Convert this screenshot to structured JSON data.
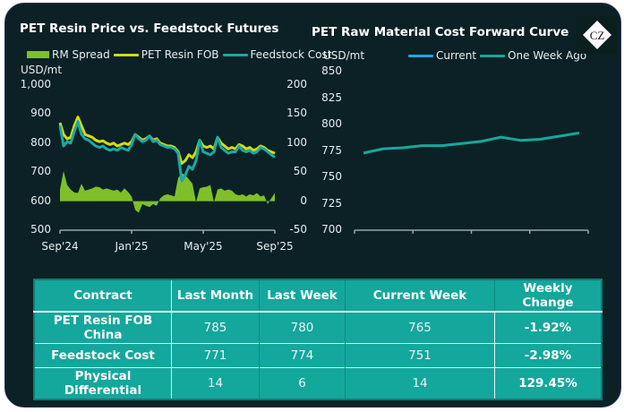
{
  "colors": {
    "background": "#0c2126",
    "rm_spread": "#7fbf2a",
    "pet_resin_fob": "#d4dc10",
    "feedstock_cost": "#18aaa5",
    "current": "#1aa8e0",
    "one_week_ago": "#14a99c",
    "table_bg": "#14a79c",
    "axis": "#9aa6a8"
  },
  "logo": {
    "icon": "cz-diamond-logo",
    "text": "CZ"
  },
  "chart_data": [
    {
      "type": "line",
      "title": "PET Resin Price vs. Feedstock Futures",
      "ylabel": "USD/mt",
      "legend_position": "top",
      "left_axis": {
        "ylim": [
          500,
          1000
        ],
        "ticks": [
          "1,000",
          "900",
          "800",
          "700",
          "600",
          "500"
        ]
      },
      "right_axis": {
        "ylim": [
          -50,
          200
        ],
        "ticks": [
          "200",
          "150",
          "100",
          "50",
          "0",
          "-50"
        ]
      },
      "x_tick_labels": [
        "Sep'24",
        "Jan'25",
        "May'25",
        "Sep'25"
      ],
      "x_range_months": [
        0,
        12
      ],
      "legend": [
        "RM Spread",
        "PET Resin FOB",
        "Feedstock Cost"
      ],
      "series": [
        {
          "name": "PET Resin FOB",
          "axis": "left",
          "x": [
            0,
            0.2,
            0.4,
            0.6,
            0.8,
            1.0,
            1.2,
            1.4,
            1.6,
            1.8,
            2.0,
            2.2,
            2.4,
            2.6,
            2.8,
            3.0,
            3.2,
            3.4,
            3.6,
            3.8,
            4.0,
            4.2,
            4.4,
            4.6,
            4.8,
            5.0,
            5.2,
            5.4,
            5.6,
            5.8,
            6.0,
            6.2,
            6.4,
            6.6,
            6.8,
            7.0,
            7.2,
            7.4,
            7.6,
            7.8,
            8.0,
            8.2,
            8.4,
            8.6,
            8.8,
            9.0,
            9.2,
            9.4,
            9.6,
            9.8,
            10.0,
            10.2,
            10.4,
            10.6,
            10.8,
            11.0,
            11.2,
            11.4,
            11.6,
            11.8,
            12.0
          ],
          "values": [
            870,
            830,
            815,
            820,
            860,
            890,
            860,
            830,
            825,
            820,
            810,
            805,
            808,
            800,
            795,
            800,
            790,
            795,
            800,
            795,
            805,
            830,
            820,
            810,
            815,
            825,
            810,
            815,
            800,
            795,
            790,
            790,
            785,
            770,
            730,
            740,
            760,
            750,
            770,
            810,
            790,
            785,
            790,
            780,
            820,
            800,
            790,
            780,
            785,
            780,
            795,
            790,
            780,
            785,
            775,
            780,
            790,
            785,
            775,
            770,
            765
          ]
        },
        {
          "name": "Feedstock Cost",
          "axis": "left",
          "x": [
            0,
            0.2,
            0.4,
            0.6,
            0.8,
            1.0,
            1.2,
            1.4,
            1.6,
            1.8,
            2.0,
            2.2,
            2.4,
            2.6,
            2.8,
            3.0,
            3.2,
            3.4,
            3.6,
            3.8,
            4.0,
            4.2,
            4.4,
            4.6,
            4.8,
            5.0,
            5.2,
            5.4,
            5.6,
            5.8,
            6.0,
            6.2,
            6.4,
            6.6,
            6.8,
            7.0,
            7.2,
            7.4,
            7.6,
            7.8,
            8.0,
            8.2,
            8.4,
            8.6,
            8.8,
            9.0,
            9.2,
            9.4,
            9.6,
            9.8,
            10.0,
            10.2,
            10.4,
            10.6,
            10.8,
            11.0,
            11.2,
            11.4,
            11.6,
            11.8,
            12.0
          ],
          "values": [
            860,
            790,
            805,
            800,
            840,
            875,
            830,
            815,
            810,
            800,
            790,
            785,
            790,
            780,
            775,
            780,
            775,
            785,
            780,
            775,
            795,
            830,
            815,
            805,
            810,
            825,
            805,
            810,
            795,
            790,
            785,
            785,
            780,
            765,
            670,
            690,
            720,
            710,
            740,
            810,
            770,
            765,
            760,
            770,
            820,
            785,
            775,
            765,
            770,
            770,
            790,
            775,
            770,
            775,
            765,
            770,
            785,
            780,
            770,
            760,
            751
          ]
        },
        {
          "name": "RM Spread",
          "axis": "right",
          "type": "area",
          "x": [
            0,
            0.2,
            0.4,
            0.6,
            0.8,
            1.0,
            1.2,
            1.4,
            1.6,
            1.8,
            2.0,
            2.2,
            2.4,
            2.6,
            2.8,
            3.0,
            3.2,
            3.4,
            3.6,
            3.8,
            4.0,
            4.2,
            4.4,
            4.6,
            4.8,
            5.0,
            5.2,
            5.4,
            5.6,
            5.8,
            6.0,
            6.2,
            6.4,
            6.6,
            6.8,
            7.0,
            7.2,
            7.4,
            7.6,
            7.8,
            8.0,
            8.2,
            8.4,
            8.6,
            8.8,
            9.0,
            9.2,
            9.4,
            9.6,
            9.8,
            10.0,
            10.2,
            10.4,
            10.6,
            10.8,
            11.0,
            11.2,
            11.4,
            11.6,
            11.8,
            12.0
          ],
          "values": [
            20,
            52,
            28,
            20,
            15,
            14,
            30,
            18,
            20,
            22,
            25,
            24,
            20,
            22,
            20,
            18,
            20,
            15,
            22,
            16,
            8,
            -15,
            -20,
            -5,
            -8,
            -10,
            -5,
            -8,
            5,
            10,
            12,
            10,
            8,
            40,
            48,
            45,
            38,
            30,
            -2,
            22,
            24,
            25,
            28,
            -2,
            20,
            22,
            18,
            20,
            18,
            12,
            10,
            12,
            8,
            12,
            10,
            14,
            8,
            10,
            -5,
            5,
            14
          ]
        }
      ]
    },
    {
      "type": "line",
      "title": "PET Raw Material Cost Forward Curve",
      "ylabel": "USD/mt",
      "legend_position": "top",
      "ylim": [
        700,
        850
      ],
      "y_ticks": [
        "850",
        "825",
        "800",
        "775",
        "750",
        "725",
        "700"
      ],
      "x_tick_labels": [],
      "legend": [
        "Current",
        "One Week Ago"
      ],
      "series": [
        {
          "name": "Current",
          "values": []
        },
        {
          "name": "One Week Ago",
          "values": [
            773,
            777,
            778,
            780,
            780,
            782,
            784,
            788,
            785,
            786,
            789,
            792
          ]
        }
      ]
    }
  ],
  "table": {
    "headers": [
      "Contract",
      "Last Month",
      "Last Week",
      "Current Week",
      "Weekly Change"
    ],
    "rows": [
      {
        "name": "PET Resin FOB China",
        "last_month": "785",
        "last_week": "780",
        "current_week": "765",
        "weekly_change": "-1.92%"
      },
      {
        "name": "Feedstock Cost",
        "last_month": "771",
        "last_week": "774",
        "current_week": "751",
        "weekly_change": "-2.98%"
      },
      {
        "name": "Physical Differential",
        "last_month": "14",
        "last_week": "6",
        "current_week": "14",
        "weekly_change": "129.45%"
      }
    ]
  }
}
